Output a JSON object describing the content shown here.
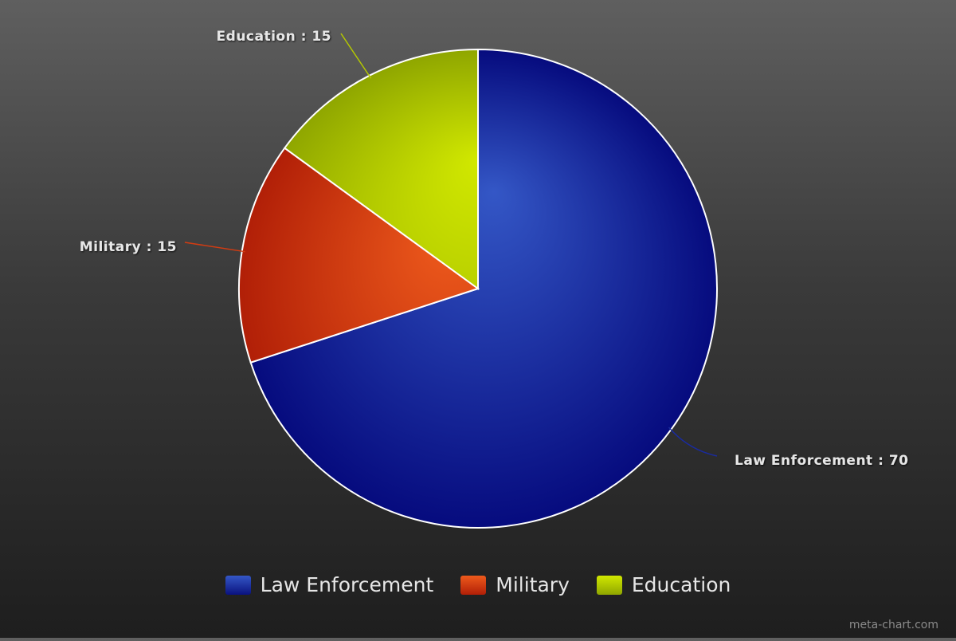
{
  "chart_data": {
    "type": "pie",
    "categories": [
      "Law Enforcement",
      "Military",
      "Education"
    ],
    "values": [
      70,
      15,
      15
    ],
    "labels": [
      "Law Enforcement : 70",
      "Military : 15",
      "Education : 15"
    ],
    "colors": [
      "#1a2b9e",
      "#d23c12",
      "#b4c800"
    ],
    "legend": {
      "position": "bottom",
      "items": [
        "Law Enforcement",
        "Military",
        "Education"
      ]
    }
  },
  "watermark": "meta-chart.com"
}
